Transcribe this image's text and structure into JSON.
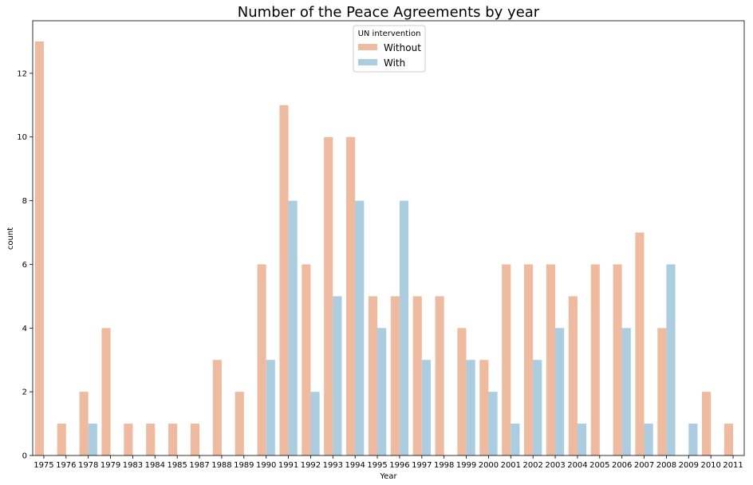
{
  "chart_data": {
    "type": "bar",
    "title": "Number of the Peace Agreements by year",
    "xlabel": "Year",
    "ylabel": "count",
    "ylim": [
      0,
      13.65
    ],
    "yticks": [
      0,
      2,
      4,
      6,
      8,
      10,
      12
    ],
    "grid": false,
    "legend": {
      "title": "UN intervention",
      "placement": "top-center"
    },
    "categories": [
      "1975",
      "1976",
      "1978",
      "1979",
      "1983",
      "1984",
      "1985",
      "1987",
      "1988",
      "1989",
      "1990",
      "1991",
      "1992",
      "1993",
      "1994",
      "1995",
      "1996",
      "1997",
      "1998",
      "1999",
      "2000",
      "2001",
      "2002",
      "2003",
      "2004",
      "2005",
      "2006",
      "2007",
      "2008",
      "2009",
      "2010",
      "2011"
    ],
    "series": [
      {
        "name": "Without",
        "color": "#eebba1",
        "values": [
          13,
          1,
          2,
          4,
          1,
          1,
          1,
          1,
          3,
          2,
          6,
          11,
          6,
          10,
          10,
          5,
          5,
          5,
          5,
          4,
          3,
          6,
          6,
          6,
          5,
          6,
          6,
          7,
          4,
          0,
          2,
          1
        ]
      },
      {
        "name": "With",
        "color": "#acccdf",
        "values": [
          0,
          0,
          1,
          0,
          0,
          0,
          0,
          0,
          0,
          0,
          3,
          8,
          2,
          5,
          8,
          4,
          8,
          3,
          0,
          3,
          2,
          1,
          3,
          4,
          1,
          0,
          4,
          1,
          6,
          1,
          0,
          0
        ]
      }
    ]
  }
}
